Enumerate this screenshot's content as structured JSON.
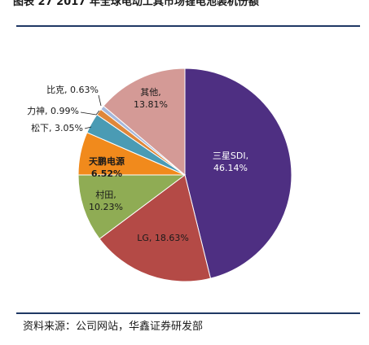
{
  "header": {
    "title": "图表 27 2017 年全球电动工具市场锂电池装机份额"
  },
  "footer": {
    "source": "资料来源：公司网站，华鑫证券研发部"
  },
  "chart_data": {
    "type": "pie",
    "title": "",
    "start_angle_deg": 0,
    "direction": "clockwise",
    "legend": "none",
    "slices": [
      {
        "name": "三星SDI",
        "value": 46.14,
        "pct_label": "46.14%",
        "color": "#4e2f82",
        "label_color": "#ffffff"
      },
      {
        "name": "LG",
        "value": 18.63,
        "pct_label": "18.63%",
        "color": "#b44a46",
        "label_color": "#1a1a1a"
      },
      {
        "name": "村田",
        "value": 10.23,
        "pct_label": "10.23%",
        "color": "#8fac54",
        "label_color": "#1a1a1a"
      },
      {
        "name": "天鹏电源",
        "value": 6.52,
        "pct_label": "6.52%",
        "color": "#f18a1c",
        "label_color": "#1a1a1a"
      },
      {
        "name": "松下",
        "value": 3.05,
        "pct_label": "3.05%",
        "color": "#4a9bb4",
        "label_color": "#1a1a1a"
      },
      {
        "name": "力神",
        "value": 0.99,
        "pct_label": "0.99%",
        "color": "#e0873a",
        "label_color": "#1a1a1a"
      },
      {
        "name": "比克",
        "value": 0.63,
        "pct_label": "0.63%",
        "color": "#a6b8dc",
        "label_color": "#1a1a1a"
      },
      {
        "name": "其他",
        "value": 13.81,
        "pct_label": "13.81%",
        "color": "#d49a96",
        "label_color": "#1a1a1a"
      }
    ]
  }
}
